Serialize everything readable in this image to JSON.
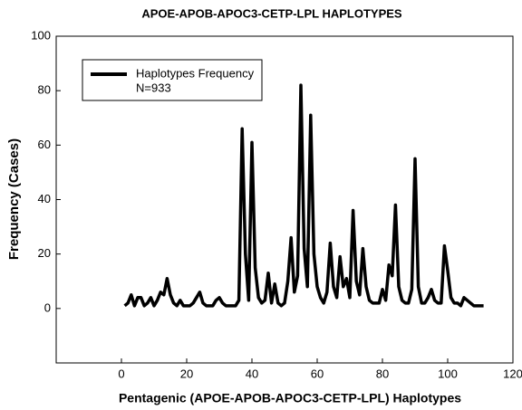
{
  "chart_data": {
    "type": "line",
    "title": "APOE-APOB-APOC3-CETP-LPL HAPLOTYPES",
    "x_label": "Pentagenic (APOE-APOB-APOC3-CETP-LPL) Haplotypes",
    "y_label": "Frequency (Cases)",
    "annotation": "N=933",
    "x": [
      1,
      2,
      3,
      4,
      5,
      6,
      7,
      8,
      9,
      10,
      11,
      12,
      13,
      14,
      15,
      16,
      17,
      18,
      19,
      20,
      21,
      22,
      23,
      24,
      25,
      26,
      27,
      28,
      29,
      30,
      31,
      32,
      33,
      34,
      35,
      36,
      37,
      38,
      39,
      40,
      41,
      42,
      43,
      44,
      45,
      46,
      47,
      48,
      49,
      50,
      51,
      52,
      53,
      54,
      55,
      56,
      57,
      58,
      59,
      60,
      61,
      62,
      63,
      64,
      65,
      66,
      67,
      68,
      69,
      70,
      71,
      72,
      73,
      74,
      75,
      76,
      77,
      78,
      79,
      80,
      81,
      82,
      83,
      84,
      85,
      86,
      87,
      88,
      89,
      90,
      91,
      92,
      93,
      94,
      95,
      96,
      97,
      98,
      99,
      100,
      101,
      102,
      103,
      104,
      105,
      106,
      107,
      108,
      109,
      110,
      111
    ],
    "series": [
      {
        "name": "Haplotypes Frequency",
        "color": "#000000",
        "values": [
          1,
          2,
          5,
          1,
          4,
          4,
          1,
          2,
          4,
          1,
          3,
          6,
          5,
          11,
          5,
          2,
          1,
          3,
          1,
          1,
          1,
          2,
          4,
          6,
          2,
          1,
          1,
          1,
          3,
          4,
          2,
          1,
          1,
          1,
          1,
          3,
          66,
          20,
          3,
          61,
          15,
          4,
          2,
          3,
          13,
          2,
          9,
          2,
          1,
          2,
          10,
          26,
          6,
          12,
          82,
          22,
          8,
          71,
          20,
          8,
          4,
          2,
          6,
          24,
          8,
          4,
          19,
          8,
          11,
          4,
          36,
          10,
          5,
          22,
          8,
          3,
          2,
          2,
          2,
          7,
          3,
          16,
          12,
          38,
          8,
          3,
          2,
          2,
          7,
          55,
          8,
          2,
          2,
          4,
          7,
          3,
          2,
          2,
          23,
          14,
          4,
          2,
          2,
          1,
          4,
          3,
          2,
          1,
          1,
          1,
          1
        ]
      }
    ],
    "xlim": [
      -20,
      120
    ],
    "xticks": [
      0,
      20,
      40,
      60,
      80,
      100,
      120
    ],
    "ylim": [
      -20,
      100
    ],
    "yticks": [
      0,
      20,
      40,
      60,
      80,
      100
    ],
    "legend": "upper left"
  }
}
